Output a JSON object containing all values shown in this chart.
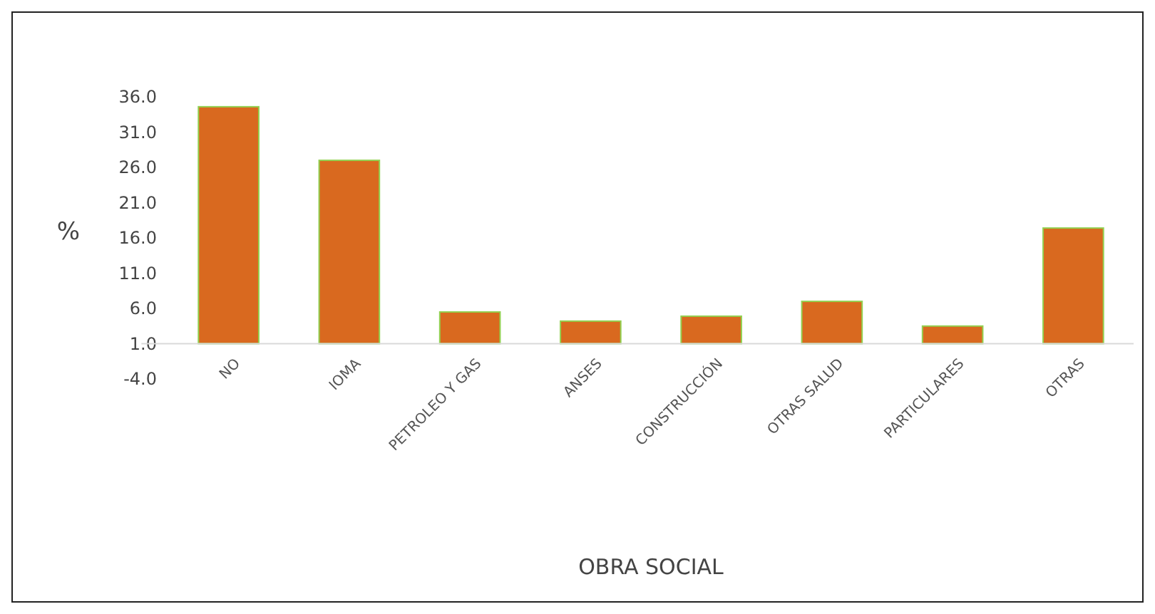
{
  "chart_data": {
    "type": "bar",
    "xlabel": "OBRA SOCIAL",
    "ylabel": "%",
    "categories": [
      "NO",
      "IOMA",
      "PETROLEO Y GAS",
      "ANSES",
      "CONSTRUCCIÓN",
      "OTRAS SALUD",
      "PARTICULARES",
      "OTRAS"
    ],
    "base": [
      1,
      1,
      1,
      1,
      1,
      1,
      1,
      1
    ],
    "values": [
      33.6,
      26.0,
      4.5,
      3.2,
      3.9,
      6.0,
      2.5,
      16.4
    ],
    "color": "#d9691f",
    "ylim": [
      -4,
      36
    ],
    "yticks": [
      {
        "value": 36,
        "label": "36.0"
      },
      {
        "value": 31,
        "label": "31.0"
      },
      {
        "value": 26,
        "label": "26.0"
      },
      {
        "value": 21,
        "label": "21.0"
      },
      {
        "value": 16,
        "label": "16.0"
      },
      {
        "value": 11,
        "label": "11.0"
      },
      {
        "value": 6,
        "label": "6.0"
      },
      {
        "value": 1,
        "label": "1.0"
      },
      {
        "value": -4,
        "label": "-4.0"
      }
    ],
    "grid": false
  }
}
